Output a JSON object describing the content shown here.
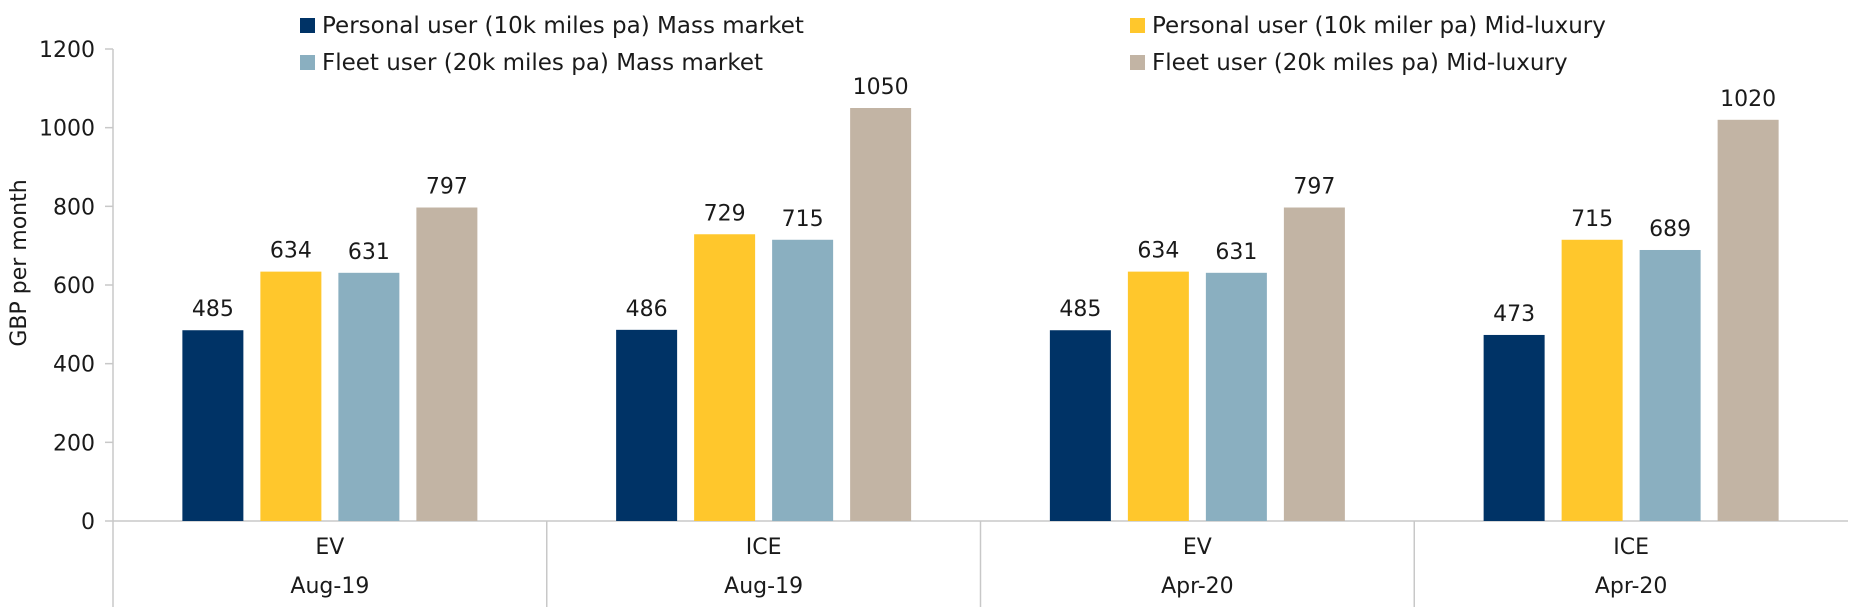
{
  "chart_data": {
    "type": "bar",
    "title": "",
    "ylabel": "GBP per month",
    "ylim": [
      0,
      1200
    ],
    "yticks": [
      0,
      200,
      400,
      600,
      800,
      1000,
      1200
    ],
    "grid": false,
    "legend_position": "top",
    "groups": [
      {
        "label": "EV",
        "period": "Aug-19"
      },
      {
        "label": "ICE",
        "period": "Aug-19"
      },
      {
        "label": "EV",
        "period": "Apr-20"
      },
      {
        "label": "ICE",
        "period": "Apr-20"
      }
    ],
    "series": [
      {
        "name": "Personal user (10k miles pa) Mass market",
        "color": "#003366",
        "values": [
          485,
          486,
          485,
          473
        ]
      },
      {
        "name": "Personal user (10k miler pa) Mid-luxury",
        "color": "#FFC72C",
        "values": [
          634,
          729,
          634,
          715
        ]
      },
      {
        "name": "Fleet user (20k miles pa) Mass market",
        "color": "#8AAFC0",
        "values": [
          631,
          715,
          631,
          689
        ]
      },
      {
        "name": "Fleet user (20k miles pa) Mid-luxury",
        "color": "#C2B4A4",
        "values": [
          797,
          1050,
          797,
          1020
        ]
      }
    ]
  }
}
